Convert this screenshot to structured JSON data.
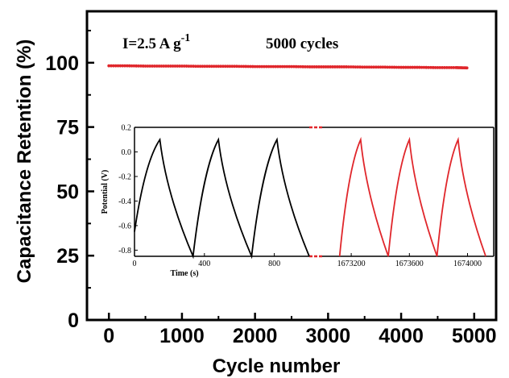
{
  "chart_data": [
    {
      "type": "scatter",
      "title": "",
      "xlabel": "Cycle number",
      "ylabel": "Capacitance Retention (%)",
      "xlim": [
        -300,
        5300
      ],
      "ylim": [
        0,
        120
      ],
      "xticks": [
        0,
        1000,
        2000,
        3000,
        4000,
        5000
      ],
      "yticks": [
        0,
        25,
        50,
        75,
        100
      ],
      "grid": false,
      "annotations": {
        "current": "I=2.5 A g",
        "current_exp": "-1",
        "cycles": "5000 cycles"
      },
      "series": [
        {
          "color": "#e0262b",
          "marker": "dot",
          "x": [
            0,
            250,
            500,
            750,
            1000,
            1250,
            1500,
            1750,
            2000,
            2250,
            2500,
            2750,
            3000,
            3250,
            3500,
            3750,
            4000,
            4250,
            4500,
            4750,
            4900
          ],
          "values": [
            98.8,
            98.8,
            98.7,
            98.7,
            98.7,
            98.6,
            98.6,
            98.6,
            98.5,
            98.5,
            98.5,
            98.4,
            98.4,
            98.4,
            98.3,
            98.3,
            98.2,
            98.2,
            98.1,
            98.1,
            98.0
          ]
        }
      ]
    },
    {
      "type": "line",
      "title": "",
      "xlabel": "Time (s)",
      "ylabel": "Potential (V)",
      "ylim": [
        -0.85,
        0.2
      ],
      "yticks": [
        0.2,
        0.0,
        -0.2,
        -0.4,
        -0.6,
        -0.8
      ],
      "ytick_labels": [
        "0.2",
        "0.0",
        "-0.2",
        "-0.4",
        "-0.6",
        "-0.8"
      ],
      "grid": false,
      "axis_break": true,
      "segments": [
        {
          "color": "#000000",
          "xlim": [
            0,
            1000
          ],
          "xticks": [
            0,
            400,
            800
          ],
          "x": [
            0,
            145,
            335,
            480,
            670,
            815,
            1000
          ],
          "values": [
            -0.65,
            0.1,
            -0.85,
            0.1,
            -0.85,
            0.1,
            -0.85
          ]
        },
        {
          "color": "#e0262b",
          "xlim": [
            1673000,
            1674180
          ],
          "xticks": [
            1673200,
            1673600,
            1674000
          ],
          "x": [
            1673120,
            1673265,
            1673455,
            1673600,
            1673790,
            1673935,
            1674125
          ],
          "values": [
            -0.85,
            0.1,
            -0.85,
            0.1,
            -0.85,
            0.1,
            -0.85
          ]
        }
      ]
    }
  ]
}
